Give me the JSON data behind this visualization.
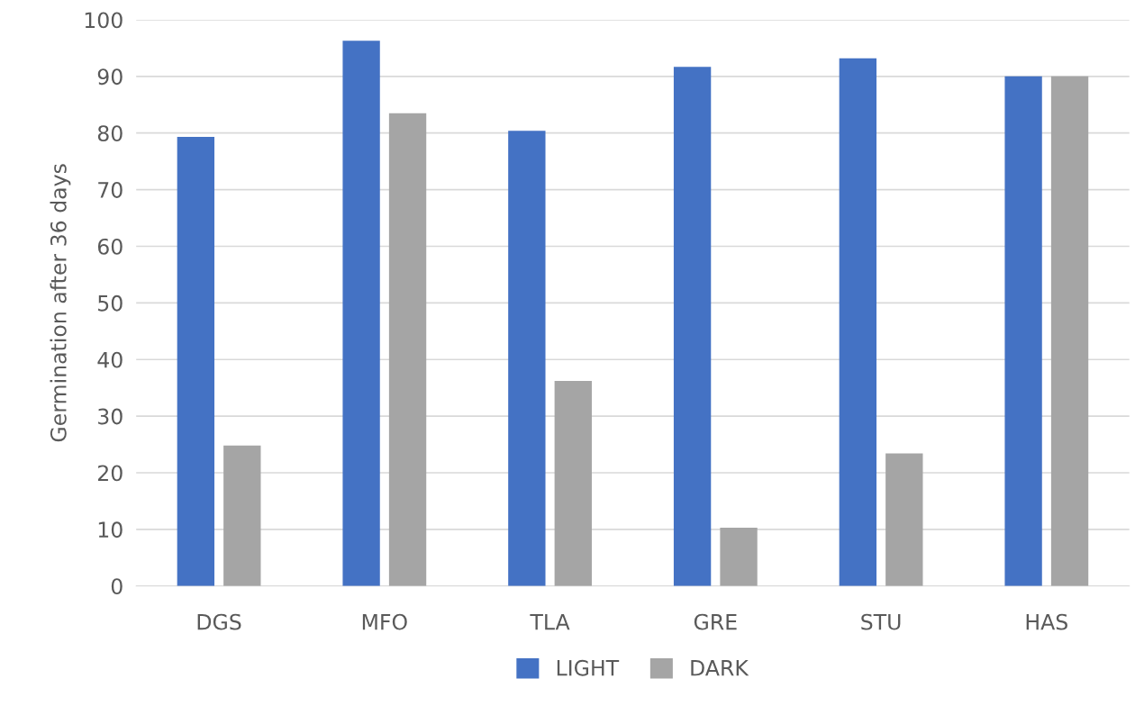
{
  "chart_data": {
    "type": "bar",
    "ylabel": "Germination after 36 days",
    "categories": [
      "DGS",
      "MFO",
      "TLA",
      "GRE",
      "STU",
      "HAS"
    ],
    "series": [
      {
        "name": "LIGHT",
        "color": "#4472c4",
        "values": [
          79.3,
          96.3,
          80.4,
          91.7,
          93.2,
          90
        ]
      },
      {
        "name": "DARK",
        "color": "#a5a5a5",
        "values": [
          24.8,
          83.5,
          36.2,
          10.3,
          23.4,
          90
        ]
      }
    ],
    "ylim": [
      0,
      100
    ],
    "yticks": [
      0,
      10,
      20,
      30,
      40,
      50,
      60,
      70,
      80,
      90,
      100
    ],
    "grid": "y",
    "legend": "bottom"
  }
}
